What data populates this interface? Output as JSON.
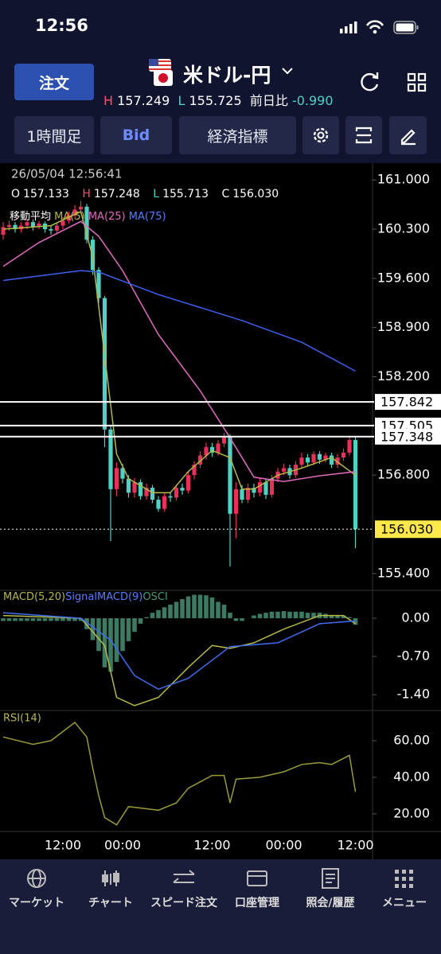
{
  "status_bar": {
    "time": "12:56"
  },
  "header": {
    "order_button": "注文",
    "pair": "米ドル-円",
    "high_label": "H",
    "high": "157.249",
    "low_label": "L",
    "low": "155.725",
    "change_label": "前日比",
    "change": "-0.990"
  },
  "toolbar": {
    "timeframe": "1時間足",
    "price_type": "Bid",
    "indicators": "経済指標"
  },
  "chart_data": [
    {
      "type": "candlestick",
      "timestamp": "26/05/04 12:56:41",
      "readout": {
        "open_label": "O",
        "open": "157.133",
        "high_label": "H",
        "high": "157.248",
        "low_label": "L",
        "low": "155.713",
        "close_label": "C",
        "close": "156.030"
      },
      "legend_title": "移動平均",
      "categories": [
        null,
        null,
        null,
        null,
        null,
        null,
        null,
        null,
        null,
        null,
        "12:00",
        null,
        null,
        null,
        null,
        null,
        null,
        null,
        null,
        null,
        "00:00",
        null,
        null,
        null,
        null,
        null,
        null,
        null,
        null,
        null,
        null,
        null,
        null,
        null,
        null,
        "12:00",
        null,
        null,
        null,
        null,
        null,
        null,
        null,
        null,
        null,
        null,
        null,
        "00:00",
        null,
        null,
        null,
        null,
        null,
        null,
        null,
        null,
        null,
        null,
        null,
        "12:00"
      ],
      "open": [
        160.22,
        160.33,
        160.36,
        160.3,
        160.35,
        160.4,
        160.33,
        160.38,
        160.3,
        160.28,
        160.35,
        160.42,
        160.5,
        160.58,
        160.62,
        160.15,
        159.72,
        159.32,
        157.45,
        156.6,
        156.9,
        156.75,
        156.55,
        156.7,
        156.5,
        156.62,
        156.45,
        156.32,
        156.5,
        156.48,
        156.62,
        156.58,
        156.8,
        156.95,
        157.08,
        157.2,
        157.12,
        157.25,
        157.35,
        156.25,
        156.6,
        156.45,
        156.62,
        156.55,
        156.7,
        156.52,
        156.75,
        156.85,
        156.9,
        156.8,
        156.95,
        157.05,
        156.98,
        157.1,
        157.02,
        157.08,
        156.95,
        157.05,
        157.12,
        157.3
      ],
      "high": [
        160.4,
        160.42,
        160.4,
        160.4,
        160.45,
        160.44,
        160.42,
        160.41,
        160.35,
        160.4,
        160.47,
        160.55,
        160.64,
        160.7,
        160.66,
        160.2,
        159.76,
        159.35,
        157.5,
        156.98,
        156.96,
        156.8,
        156.76,
        156.74,
        156.68,
        156.66,
        156.5,
        156.55,
        156.55,
        156.66,
        156.68,
        156.85,
        157.0,
        157.14,
        157.26,
        157.26,
        157.3,
        157.4,
        157.38,
        156.7,
        156.66,
        156.68,
        156.68,
        156.76,
        156.74,
        156.8,
        156.9,
        156.96,
        156.95,
        157.0,
        157.12,
        157.1,
        157.14,
        157.14,
        157.12,
        157.12,
        157.1,
        157.18,
        157.34,
        157.36
      ],
      "low": [
        160.15,
        160.28,
        160.25,
        160.25,
        160.3,
        160.28,
        160.3,
        160.25,
        160.22,
        160.24,
        160.3,
        160.38,
        160.45,
        160.52,
        160.1,
        159.65,
        159.25,
        157.2,
        155.86,
        156.5,
        156.68,
        156.48,
        156.48,
        156.45,
        156.45,
        156.4,
        156.28,
        156.28,
        156.42,
        156.44,
        156.52,
        156.54,
        156.74,
        156.9,
        157.02,
        157.06,
        157.08,
        157.2,
        155.5,
        155.9,
        156.4,
        156.4,
        156.48,
        156.5,
        156.46,
        156.48,
        156.7,
        156.8,
        156.75,
        156.76,
        156.9,
        156.92,
        156.94,
        156.96,
        156.98,
        156.9,
        156.9,
        157.0,
        157.08,
        155.76
      ],
      "close": [
        160.33,
        160.36,
        160.3,
        160.35,
        160.4,
        160.33,
        160.38,
        160.3,
        160.28,
        160.35,
        160.42,
        160.5,
        160.58,
        160.62,
        160.15,
        159.72,
        159.32,
        157.45,
        156.6,
        156.9,
        156.75,
        156.55,
        156.7,
        156.5,
        156.62,
        156.45,
        156.32,
        156.5,
        156.48,
        156.62,
        156.58,
        156.8,
        156.95,
        157.08,
        157.2,
        157.12,
        157.25,
        157.35,
        156.25,
        156.6,
        156.45,
        156.62,
        156.55,
        156.7,
        156.52,
        156.75,
        156.85,
        156.9,
        156.8,
        156.95,
        157.05,
        156.98,
        157.1,
        157.02,
        157.08,
        156.95,
        157.05,
        157.12,
        157.3,
        156.03
      ],
      "up_color": "#e8305a",
      "down_color": "#4fd1c5",
      "series": [
        {
          "name": "MA(5)",
          "color": "#b5b84a",
          "x": [
            0,
            8,
            13,
            15,
            17,
            19,
            21,
            25,
            28,
            31,
            35,
            38,
            40,
            42,
            46,
            50,
            55,
            59
          ],
          "values": [
            160.3,
            160.35,
            160.55,
            159.9,
            158.5,
            157.1,
            156.75,
            156.55,
            156.55,
            156.85,
            157.15,
            157.05,
            156.6,
            156.6,
            156.8,
            156.9,
            157.05,
            156.8
          ]
        },
        {
          "name": "MA(25)",
          "color": "#e06cc0",
          "x": [
            0,
            6,
            13,
            16,
            20,
            26,
            33,
            38,
            42,
            47,
            53,
            59
          ],
          "values": [
            159.77,
            160.11,
            160.41,
            160.2,
            159.71,
            158.8,
            158.0,
            157.33,
            156.77,
            156.71,
            156.79,
            156.85
          ]
        },
        {
          "name": "MA(75)",
          "color": "#3f5ff0",
          "x": [
            0,
            13,
            16,
            26,
            40,
            50,
            59
          ],
          "values": [
            159.57,
            159.71,
            159.69,
            159.37,
            159.0,
            158.69,
            158.28
          ]
        }
      ],
      "price_lines": [
        {
          "value": 157.842,
          "label": "157.842"
        },
        {
          "value": 157.505,
          "label": "157.505"
        },
        {
          "value": 157.348,
          "label": "157.348"
        }
      ],
      "current_price": {
        "value": 156.03,
        "label": "156.030"
      },
      "ylim": [
        155.16,
        161.24
      ],
      "yticks": [
        {
          "value": 161,
          "label": "161.000"
        },
        {
          "value": 160.3,
          "label": "160.300"
        },
        {
          "value": 159.6,
          "label": "159.600"
        },
        {
          "value": 158.9,
          "label": "158.900"
        },
        {
          "value": 158.2,
          "label": "158.200"
        },
        {
          "value": 156.8,
          "label": "156.800"
        },
        {
          "value": 155.4,
          "label": "155.400"
        }
      ]
    },
    {
      "type": "macd",
      "series": [
        {
          "name": "MACD(5,20)",
          "color": "#b5b84a",
          "x": [
            0,
            13,
            17,
            19,
            22,
            26,
            31,
            35,
            38,
            42,
            47,
            53,
            57,
            59
          ],
          "values": [
            0.05,
            0.0,
            -0.5,
            -1.45,
            -1.6,
            -1.45,
            -0.9,
            -0.5,
            -0.55,
            -0.45,
            -0.2,
            0.05,
            0.05,
            -0.1
          ]
        },
        {
          "name": "SignalMACD(9)",
          "color": "#3f6cf0",
          "x": [
            0,
            13,
            18,
            22,
            26,
            31,
            38,
            46,
            53,
            59
          ],
          "values": [
            0.1,
            0.0,
            -0.4,
            -1.05,
            -1.3,
            -1.1,
            -0.52,
            -0.45,
            -0.1,
            -0.05
          ]
        },
        {
          "name": "OSCI",
          "color": "#3d7a62",
          "values": [
            -0.05,
            -0.05,
            -0.05,
            -0.05,
            -0.05,
            -0.05,
            -0.05,
            -0.05,
            -0.05,
            -0.05,
            -0.05,
            -0.05,
            -0.05,
            -0.05,
            -0.2,
            -0.4,
            -0.6,
            -0.9,
            -0.98,
            -0.8,
            -0.6,
            -0.42,
            -0.25,
            -0.1,
            0.02,
            0.1,
            0.15,
            0.2,
            0.25,
            0.3,
            0.35,
            0.4,
            0.43,
            0.43,
            0.42,
            0.38,
            0.3,
            0.25,
            0.1,
            -0.05,
            -0.05,
            0.0,
            0.05,
            0.08,
            0.1,
            0.12,
            0.12,
            0.13,
            0.12,
            0.12,
            0.12,
            0.1,
            0.1,
            0.1,
            0.08,
            0.06,
            0.05,
            0.05,
            0.02,
            -0.12
          ]
        }
      ],
      "ylim": [
        -1.69,
        0.51
      ],
      "yticks": [
        {
          "value": 0,
          "label": "0.00"
        },
        {
          "value": -0.7,
          "label": "-0.70"
        },
        {
          "value": -1.4,
          "label": "-1.40"
        }
      ]
    },
    {
      "type": "line",
      "series": [
        {
          "name": "RSI(14)",
          "color": "#9a9a3a",
          "x": [
            0,
            5,
            8,
            12,
            14,
            15,
            16,
            17,
            19,
            21,
            26,
            29,
            31,
            35,
            37,
            38,
            39,
            43,
            47,
            50,
            53,
            55,
            58,
            59
          ],
          "values": [
            62,
            58,
            60,
            70,
            62,
            45,
            30,
            18,
            14,
            24,
            22,
            26,
            34,
            41,
            41,
            26,
            39,
            40,
            43,
            47,
            48,
            47,
            52,
            32
          ]
        }
      ],
      "ylim": [
        10.4,
        76.5
      ],
      "yticks": [
        {
          "value": 60,
          "label": "60.00"
        },
        {
          "value": 40,
          "label": "40.00"
        },
        {
          "value": 20,
          "label": "20.00"
        }
      ]
    }
  ],
  "nav": {
    "items": [
      "マーケット",
      "チャート",
      "スピード注文",
      "口座管理",
      "照会/履歴",
      "メニュー"
    ]
  }
}
